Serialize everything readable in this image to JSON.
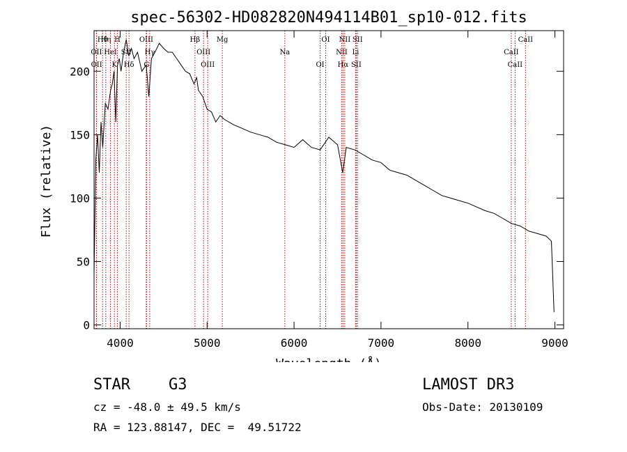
{
  "chart_data": {
    "type": "line",
    "title": "spec-56302-HD082820N494114B01_sp10-012.fits",
    "xlabel": "Wavelength (Å)",
    "ylabel": "Flux (relative)",
    "xlim": [
      3700,
      9100
    ],
    "ylim": [
      -3,
      232
    ],
    "xticks": [
      4000,
      5000,
      6000,
      7000,
      8000,
      9000
    ],
    "yticks": [
      0,
      50,
      100,
      150,
      200
    ],
    "series": [
      {
        "name": "spectrum",
        "x": [
          3700,
          3720,
          3740,
          3760,
          3780,
          3800,
          3830,
          3860,
          3890,
          3910,
          3930,
          3950,
          3970,
          3990,
          4010,
          4040,
          4070,
          4100,
          4130,
          4160,
          4200,
          4250,
          4300,
          4330,
          4360,
          4400,
          4450,
          4500,
          4550,
          4600,
          4650,
          4700,
          4750,
          4800,
          4850,
          4880,
          4900,
          4950,
          5000,
          5050,
          5100,
          5150,
          5200,
          5300,
          5400,
          5500,
          5600,
          5700,
          5800,
          5900,
          6000,
          6100,
          6200,
          6300,
          6400,
          6500,
          6560,
          6600,
          6700,
          6800,
          6900,
          7000,
          7100,
          7200,
          7300,
          7400,
          7500,
          7600,
          7700,
          7800,
          7900,
          8000,
          8100,
          8200,
          8300,
          8400,
          8500,
          8600,
          8700,
          8800,
          8900,
          8960,
          8990
        ],
        "y": [
          40,
          130,
          150,
          120,
          160,
          140,
          175,
          170,
          185,
          190,
          200,
          160,
          205,
          210,
          200,
          215,
          225,
          212,
          218,
          210,
          215,
          200,
          205,
          180,
          210,
          215,
          222,
          218,
          215,
          215,
          210,
          205,
          200,
          198,
          190,
          195,
          185,
          180,
          170,
          168,
          160,
          165,
          162,
          158,
          155,
          152,
          150,
          148,
          144,
          142,
          140,
          146,
          140,
          138,
          148,
          142,
          120,
          140,
          138,
          134,
          130,
          128,
          122,
          120,
          118,
          114,
          110,
          106,
          102,
          100,
          98,
          96,
          93,
          90,
          88,
          84,
          80,
          78,
          74,
          72,
          70,
          66,
          10
        ]
      }
    ],
    "line_markers": [
      {
        "label": "Hθ",
        "wavelength": 3798
      },
      {
        "label": "OII",
        "wavelength": 3727
      },
      {
        "label": "OII",
        "wavelength": 3729
      },
      {
        "label": "Hη",
        "wavelength": 3835
      },
      {
        "label": "HeI",
        "wavelength": 3889
      },
      {
        "label": "K",
        "wavelength": 3934
      },
      {
        "label": "H",
        "wavelength": 3968
      },
      {
        "label": "SII",
        "wavelength": 4070
      },
      {
        "label": "Hδ",
        "wavelength": 4102
      },
      {
        "label": "OIII",
        "wavelength": 4300
      },
      {
        "label": "Hγ",
        "wavelength": 4340
      },
      {
        "label": "G",
        "wavelength": 4304
      },
      {
        "label": "Hβ",
        "wavelength": 4861
      },
      {
        "label": "OIII",
        "wavelength": 4959
      },
      {
        "label": "OIII",
        "wavelength": 5007
      },
      {
        "label": "Mg",
        "wavelength": 5175
      },
      {
        "label": "Na",
        "wavelength": 5894
      },
      {
        "label": "OI",
        "wavelength": 6300
      },
      {
        "label": "OI",
        "wavelength": 6364
      },
      {
        "label": "NII",
        "wavelength": 6548
      },
      {
        "label": "Hα",
        "wavelength": 6563
      },
      {
        "label": "NII",
        "wavelength": 6583
      },
      {
        "label": "Li",
        "wavelength": 6708
      },
      {
        "label": "SII",
        "wavelength": 6716
      },
      {
        "label": "SII",
        "wavelength": 6731
      },
      {
        "label": "CaII",
        "wavelength": 8498
      },
      {
        "label": "CaII",
        "wavelength": 8542
      },
      {
        "label": "CaII",
        "wavelength": 8662
      }
    ]
  },
  "info": {
    "object_class": "STAR",
    "subclass": "G3",
    "survey": "LAMOST DR3",
    "redshift_text": "cz = -48.0 ± 49.5 km/s",
    "obs_date_text": "Obs-Date: 20130109",
    "coords_text": "RA = 123.88147, DEC =  49.51722"
  }
}
